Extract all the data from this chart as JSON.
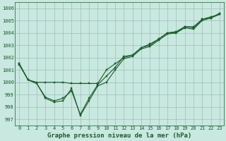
{
  "xlabel": "Graphe pression niveau de la mer (hPa)",
  "background_color": "#c8e8e0",
  "line_color": "#1a5c2a",
  "grid_color": "#9bbfb5",
  "xlim": [
    -0.5,
    23.5
  ],
  "ylim": [
    996.5,
    1006.5
  ],
  "yticks": [
    997,
    998,
    999,
    1000,
    1001,
    1002,
    1003,
    1004,
    1005,
    1006
  ],
  "xticks": [
    0,
    1,
    2,
    3,
    4,
    5,
    6,
    7,
    8,
    9,
    10,
    11,
    12,
    13,
    14,
    15,
    16,
    17,
    18,
    19,
    20,
    21,
    22,
    23
  ],
  "series": [
    [
      1001.5,
      1000.2,
      1000.0,
      1000.0,
      1000.0,
      1000.0,
      999.9,
      999.9,
      999.9,
      999.9,
      1001.0,
      1001.5,
      1002.0,
      1002.2,
      1002.8,
      1003.1,
      1003.5,
      1004.0,
      1004.1,
      1004.5,
      1004.5,
      1005.1,
      1005.2,
      1005.6
    ],
    [
      1001.5,
      1000.2,
      999.9,
      998.8,
      998.5,
      998.7,
      999.3,
      997.4,
      998.7,
      999.8,
      1000.5,
      1001.2,
      1002.1,
      1002.2,
      1002.8,
      1003.0,
      1003.5,
      1004.0,
      1004.0,
      1004.5,
      1004.4,
      1005.1,
      1005.3,
      1005.5
    ],
    [
      1001.4,
      1000.2,
      999.9,
      998.7,
      998.4,
      998.5,
      999.5,
      997.3,
      998.5,
      999.7,
      1000.0,
      1001.0,
      1001.9,
      1002.1,
      1002.7,
      1002.9,
      1003.4,
      1003.9,
      1004.0,
      1004.4,
      1004.3,
      1005.0,
      1005.2,
      1005.5
    ]
  ],
  "marker_size": 2.0,
  "line_width": 0.8,
  "tick_label_size": 5.0,
  "xlabel_fontsize": 6.5
}
